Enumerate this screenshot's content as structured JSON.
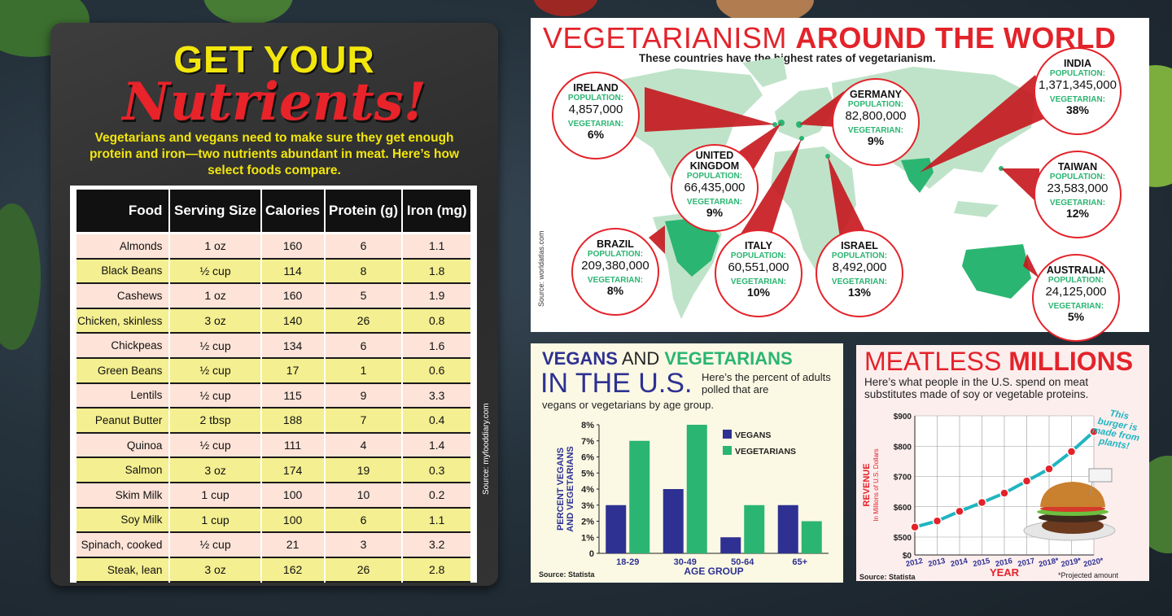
{
  "nutrients": {
    "title_line1": "GET YOUR",
    "title_line2": "Nutrients!",
    "intro": "Vegetarians and vegans need to make sure they get enough protein and iron—two nutrients abundant in meat. Here’s how select foods compare.",
    "columns": [
      "Food",
      "Serving Size",
      "Calories",
      "Protein (g)",
      "Iron (mg)"
    ],
    "rows": [
      [
        "Almonds",
        "1 oz",
        "160",
        "6",
        "1.1"
      ],
      [
        "Black Beans",
        "½ cup",
        "114",
        "8",
        "1.8"
      ],
      [
        "Cashews",
        "1 oz",
        "160",
        "5",
        "1.9"
      ],
      [
        "Chicken, skinless",
        "3 oz",
        "140",
        "26",
        "0.8"
      ],
      [
        "Chickpeas",
        "½ cup",
        "134",
        "6",
        "1.6"
      ],
      [
        "Green Beans",
        "½ cup",
        "17",
        "1",
        "0.6"
      ],
      [
        "Lentils",
        "½ cup",
        "115",
        "9",
        "3.3"
      ],
      [
        "Peanut Butter",
        "2 tbsp",
        "188",
        "7",
        "0.4"
      ],
      [
        "Quinoa",
        "½ cup",
        "111",
        "4",
        "1.4"
      ],
      [
        "Salmon",
        "3 oz",
        "174",
        "19",
        "0.3"
      ],
      [
        "Skim Milk",
        "1 cup",
        "100",
        "10",
        "0.2"
      ],
      [
        "Soy Milk",
        "1 cup",
        "100",
        "6",
        "1.1"
      ],
      [
        "Spinach, cooked",
        "½ cup",
        "21",
        "3",
        "3.2"
      ],
      [
        "Steak, lean",
        "3 oz",
        "162",
        "26",
        "2.8"
      ]
    ],
    "source": "Source: myfooddiary.com"
  },
  "map": {
    "title_light": "VEGETARIANISM ",
    "title_bold": "AROUND THE WORLD",
    "subtitle": "These countries have the highest rates of vegetarianism.",
    "source": "Source: worldatlas.com",
    "population_label": "POPULATION:",
    "vegetarian_label": "VEGETARIAN:",
    "countries": [
      {
        "name": "IRELAND",
        "population": "4,857,000",
        "vegetarian": "6%"
      },
      {
        "name": "GERMANY",
        "population": "82,800,000",
        "vegetarian": "9%"
      },
      {
        "name": "INDIA",
        "population": "1,371,345,000",
        "vegetarian": "38%"
      },
      {
        "name": "UNITED KINGDOM",
        "population": "66,435,000",
        "vegetarian": "9%"
      },
      {
        "name": "TAIWAN",
        "population": "23,583,000",
        "vegetarian": "12%"
      },
      {
        "name": "BRAZIL",
        "population": "209,380,000",
        "vegetarian": "8%"
      },
      {
        "name": "ITALY",
        "population": "60,551,000",
        "vegetarian": "10%"
      },
      {
        "name": "ISRAEL",
        "population": "8,492,000",
        "vegetarian": "13%"
      },
      {
        "name": "AUSTRALIA",
        "population": "24,125,000",
        "vegetarian": "5%"
      }
    ]
  },
  "vegans": {
    "title_a": "VEGANS",
    "title_b": " AND ",
    "title_c": "VEGETARIANS",
    "title_line2": "IN THE U.S.",
    "subtitle_1": "Here’s the percent of adults polled that are",
    "subtitle_2": "vegans or vegetarians by age group.",
    "source": "Source: Statista"
  },
  "meatless": {
    "title_light": "MEATLESS ",
    "title_bold": "MILLIONS",
    "subtitle": "Here’s what people in the U.S. spend on meat substitutes made of soy or vegetable proteins.",
    "note": "This burger is made from plants!",
    "source": "Source: Statista",
    "projected": "*Projected amount"
  },
  "chart_data": [
    {
      "type": "bar",
      "categories": [
        "18-29",
        "30-49",
        "50-64",
        "65+"
      ],
      "series": [
        {
          "name": "VEGANS",
          "values": [
            3,
            4,
            1,
            3
          ],
          "color": "#2e3192"
        },
        {
          "name": "VEGETARIANS",
          "values": [
            7,
            8,
            3,
            2
          ],
          "color": "#2bb572"
        }
      ],
      "xlabel": "AGE GROUP",
      "ylabel": "PERCENT VEGANS AND VEGETARIANS",
      "ylim": [
        0,
        8
      ],
      "yticks": [
        "0",
        "1%",
        "2%",
        "3%",
        "4%",
        "5%",
        "6%",
        "7%",
        "8%"
      ],
      "legend": "top-right",
      "grid": false
    },
    {
      "type": "line",
      "x": [
        "2012",
        "2013",
        "2014",
        "2015",
        "2016",
        "2017",
        "2018*",
        "2019*",
        "2020*"
      ],
      "values": [
        533,
        553,
        585,
        614,
        645,
        685,
        725,
        782,
        848
      ],
      "xlabel": "YEAR",
      "ylabel": "REVENUE",
      "ylabel_sub": "In Millions of U.S. Dollars",
      "ylim": [
        0,
        900
      ],
      "yticks": [
        "$0",
        "$500",
        "$600",
        "$700",
        "$800",
        "$900"
      ],
      "color": "#1fb5c0",
      "grid": true
    }
  ]
}
